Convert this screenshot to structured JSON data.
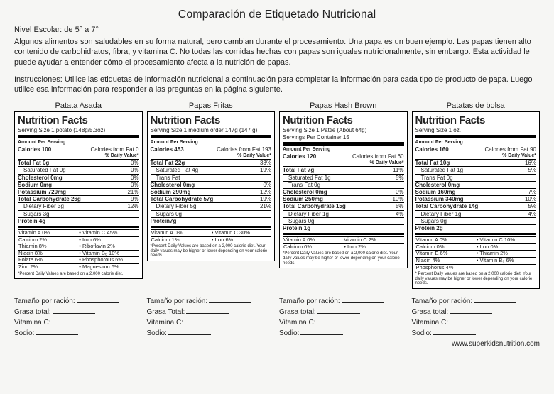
{
  "title": "Comparación de Etiquetado Nutricional",
  "grade": "Nivel Escolar: de 5° a 7°",
  "intro": "Algunos alimentos son saludables en su forma natural, pero cambian durante el procesamiento.  Una papa es un buen ejemplo.  Las papas tienen alto contenido de carbohidratos, fibra, y vitamina C.  No todas las comidas hechas con papas son iguales nutricionalmente, sin embargo.  Esta actividad le puede ayudar a entender cómo el procesamiento afecta a la nutrición de papas.",
  "instr": "Instrucciones: Utilice las etiquetas de información nutricional a continuación para completar la información para cada tipo de producto de papa.  Luego utilice esa información para responder a las preguntas en la página siguiente.",
  "heading": "Nutrition Facts",
  "aps": "Amount Per Serving",
  "dvh": "% Daily Value*",
  "cols": [
    {
      "title": "Patata Asada",
      "serving": "Serving Size 1 potato  (148g/5.3oz)",
      "cal_l": "Calories 100",
      "cal_r": "Calories from Fat 0",
      "rows": [
        {
          "l": "Total Fat 0g",
          "r": "0%",
          "b": 1
        },
        {
          "l": "Saturated Fat 0g",
          "r": "0%",
          "i": 1
        },
        {
          "l": "Cholesterol 0mg",
          "r": "0%",
          "b": 1
        },
        {
          "l": "Sodium 0mg",
          "r": "0%",
          "b": 1
        },
        {
          "l": "Potassium 720mg",
          "r": "21%",
          "b": 1
        },
        {
          "l": "Total Carbohydrate 26g",
          "r": "9%",
          "b": 1
        },
        {
          "l": "Dietary Fiber 3g",
          "r": "12%",
          "i": 1
        },
        {
          "l": "Sugars 3g",
          "r": "",
          "i": 1
        },
        {
          "l": "Protein 4g",
          "r": "",
          "b": 1
        }
      ],
      "vits": [
        [
          "Vitamin A  0%",
          "• Vitamin C  45%"
        ],
        [
          "Calcium  2%",
          "• Iron  6%"
        ],
        [
          "Thiamin  8%",
          "• Riboflavin  2%"
        ],
        [
          "Niacin  8%",
          "• Vitamin B₆  10%"
        ],
        [
          "Folate  6%",
          "• Phosphorous  6%"
        ],
        [
          "Zinc  2%",
          "• Magnesium  6%"
        ]
      ],
      "foot": "*Percent Daily Values are based on a 2,000 calorie diet."
    },
    {
      "title": "Papas Fritas",
      "serving": "Serving Size 1 medium order 147g (147 g)",
      "cal_l": "Calories 453",
      "cal_r": "Calories from Fat 193",
      "rows": [
        {
          "l": "Total Fat 22g",
          "r": "33%",
          "b": 1
        },
        {
          "l": "Saturated Fat 4g",
          "r": "19%",
          "i": 1
        },
        {
          "l": "Trans Fat",
          "r": "",
          "i": 1
        },
        {
          "l": "Cholesterol 0mg",
          "r": "0%",
          "b": 1
        },
        {
          "l": "Sodium 290mg",
          "r": "12%",
          "b": 1
        },
        {
          "l": "Total Carbohydrate 57g",
          "r": "19%",
          "b": 1
        },
        {
          "l": "Dietary Fiber 5g",
          "r": "21%",
          "i": 1
        },
        {
          "l": "Sugars 0g",
          "r": "",
          "i": 1
        },
        {
          "l": "Protein7g",
          "r": "",
          "b": 1
        }
      ],
      "vits": [
        [
          "Vitamin A            0%",
          "• Vitamin C        30%"
        ],
        [
          "Calcium               1%",
          "• Iron                 6%"
        ]
      ],
      "foot": "*Percent Daily Values are based on a 2,000 calorie diet. Your daily values may be higher or lower depending on your calorie needs."
    },
    {
      "title": "Papas Hash Brown",
      "serving": "Serving Size 1 Pattie (About 64g)\nServings Per Container 15",
      "cal_l": "Calories 120",
      "cal_r": "Calories from Fat 60",
      "rows": [
        {
          "l": "Total Fat 7g",
          "r": "11%",
          "b": 1
        },
        {
          "l": "Saturated Fat 1g",
          "r": "5%",
          "i": 1
        },
        {
          "l": "Trans Fat 0g",
          "r": "",
          "i": 1
        },
        {
          "l": "Cholesterol 0mg",
          "r": "0%",
          "b": 1
        },
        {
          "l": "Sodium 250mg",
          "r": "10%",
          "b": 1
        },
        {
          "l": "Total Carbohydrate 15g",
          "r": "5%",
          "b": 1
        },
        {
          "l": "Dietary Fiber 1g",
          "r": "4%",
          "i": 1
        },
        {
          "l": "Sugars 0g",
          "r": "",
          "i": 1
        },
        {
          "l": "Protein 1g",
          "r": "",
          "b": 1
        }
      ],
      "vits": [
        [
          "Vitamin A 0%",
          "Vitamin C 2%"
        ],
        [
          "Calcium 0%",
          "•     Iron 2%"
        ]
      ],
      "foot": "*Percent Daily Values are based on a 2,000 calorie diet. Your daily values may be higher or lower depending on your calorie needs."
    },
    {
      "title": "Patatas de bolsa",
      "serving": "Serving Size 1 oz.",
      "cal_l": "Calories 160",
      "cal_r": "Calories from Fat 90",
      "rows": [
        {
          "l": "Total Fat 10g",
          "r": "16%",
          "b": 1
        },
        {
          "l": "Saturated Fat 1g",
          "r": "5%",
          "i": 1
        },
        {
          "l": "Trans Fat 0g",
          "r": "",
          "i": 1
        },
        {
          "l": "Cholesterol 0mg",
          "r": "",
          "b": 1
        },
        {
          "l": "Sodium 160mg",
          "r": "7%",
          "b": 1
        },
        {
          "l": "Potassium 340mg",
          "r": "10%",
          "b": 1
        },
        {
          "l": "Total Carbohydrate 14g",
          "r": "5%",
          "b": 1
        },
        {
          "l": "Dietary Fiber 1g",
          "r": "4%",
          "i": 1
        },
        {
          "l": "Sugars 0g",
          "r": "",
          "i": 1
        },
        {
          "l": "Protein 2g",
          "r": "",
          "b": 1
        }
      ],
      "vits": [
        [
          "Vitamin A 0%",
          "•      Vitamin C 10%"
        ],
        [
          "Calcium 0%",
          "•      Iron 0%"
        ],
        [
          "Vitamin E 6%",
          "•      Thiamin 2%"
        ],
        [
          "Niacin 4%",
          "•      Vitamin B₆ 6%"
        ],
        [
          "Phosphorus 4%",
          ""
        ]
      ],
      "foot": "* Percent Daily Values are based on a 2,000 calorie diet. Your daily values may be higher or lower depending on your calorie needs."
    }
  ],
  "fill_labels": {
    "a": [
      "Tamaño por ración:",
      "Grasa total:",
      "Vitamina C:",
      "Sodio:"
    ],
    "b": [
      "Tamaño por ración:",
      "Grasa Total:",
      "Vitamina C:",
      "Sodio:"
    ],
    "c": [
      "Tamaño por ración:",
      "Grasa total:",
      "Vitamina C:",
      "Sodio:"
    ],
    "d": [
      "Tamaño por ración:",
      "Grasa total:",
      "Vitamina C:",
      "Sodio:"
    ]
  },
  "url": "www.superkidsnutrition.com"
}
